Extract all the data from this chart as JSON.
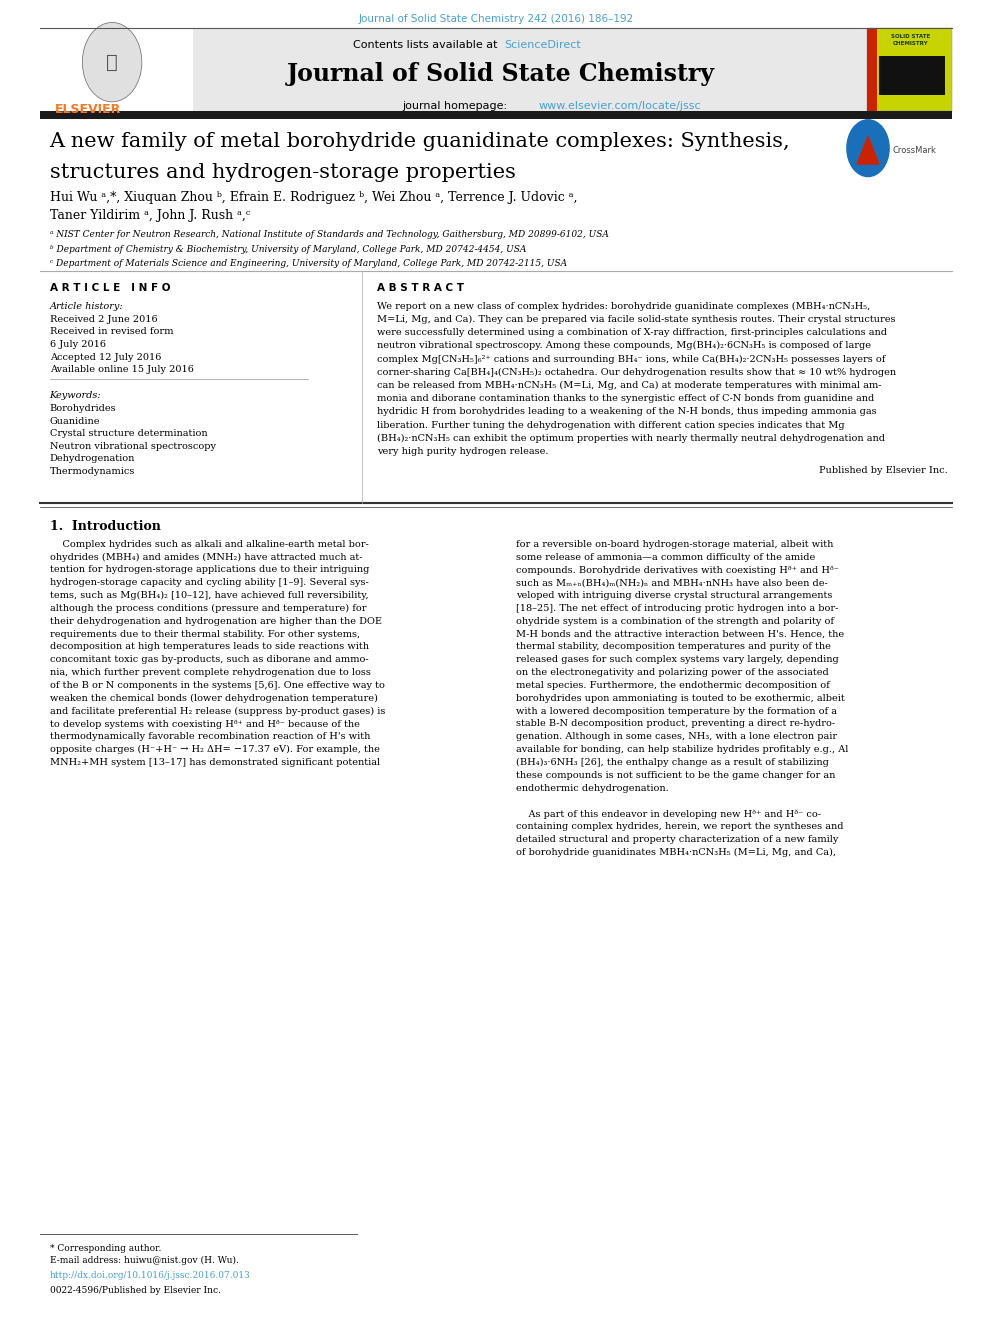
{
  "page_width": 9.92,
  "page_height": 13.23,
  "background": "#ffffff",
  "top_journal_ref": "Journal of Solid State Chemistry 242 (2016) 186–192",
  "top_journal_ref_color": "#4a9fd4",
  "header_bg": "#e8e8e8",
  "header_sciencedirect_color": "#4a9fd4",
  "journal_name": "Journal of Solid State Chemistry",
  "journal_homepage_color": "#4a9fd4",
  "thick_bar_color": "#1a1a1a",
  "article_title_line1": "A new family of metal borohydride guanidinate complexes: Synthesis,",
  "article_title_line2": "structures and hydrogen-storage properties",
  "authors_line1": "Hui Wu ᵃ,*, Xiuquan Zhou ᵇ, Efrain E. Rodriguez ᵇ, Wei Zhou ᵃ, Terrence J. Udovic ᵃ,",
  "authors_line2": "Taner Yildirim ᵃ, John J. Rush ᵃ,ᶜ",
  "affil_a": "ᵃ NIST Center for Neutron Research, National Institute of Standards and Technology, Gaithersburg, MD 20899-6102, USA",
  "affil_b": "ᵇ Department of Chemistry & Biochemistry, University of Maryland, College Park, MD 20742-4454, USA",
  "affil_c": "ᶜ Department of Materials Science and Engineering, University of Maryland, College Park, MD 20742-2115, USA",
  "thin_rule_color": "#aaaaaa",
  "article_info_header": "A R T I C L E   I N F O",
  "abstract_header": "A B S T R A C T",
  "article_history_label": "Article history:",
  "received_1": "Received 2 June 2016",
  "received_revised": "Received in revised form",
  "revised_date": "6 July 2016",
  "accepted": "Accepted 12 July 2016",
  "available": "Available online 15 July 2016",
  "keywords_label": "Keywords:",
  "keywords": [
    "Borohydrides",
    "Guanidine",
    "Crystal structure determination",
    "Neutron vibrational spectroscopy",
    "Dehydrogenation",
    "Thermodynamics"
  ],
  "published_by": "Published by Elsevier Inc.",
  "intro_header": "1.  Introduction",
  "footnote_star": "* Corresponding author.",
  "footnote_email": "E-mail address: huiwu@nist.gov (H. Wu).",
  "footnote_doi": "http://dx.doi.org/10.1016/j.jssc.2016.07.013",
  "footnote_issn": "0022-4596/Published by Elsevier Inc.",
  "abstract_lines": [
    "We report on a new class of complex hydrides: borohydride guanidinate complexes (MBH₄·nCN₃H₅,",
    "M=Li, Mg, and Ca). They can be prepared via facile solid-state synthesis routes. Their crystal structures",
    "were successfully determined using a combination of X-ray diffraction, first-principles calculations and",
    "neutron vibrational spectroscopy. Among these compounds, Mg(BH₄)₂·6CN₃H₅ is composed of large",
    "complex Mg[CN₃H₅]₆²⁺ cations and surrounding BH₄⁻ ions, while Ca(BH₄)₂·2CN₃H₅ possesses layers of",
    "corner-sharing Ca[BH₄]₄(CN₃H₅)₂ octahedra. Our dehydrogenation results show that ≈ 10 wt% hydrogen",
    "can be released from MBH₄·nCN₃H₅ (M=Li, Mg, and Ca) at moderate temperatures with minimal am-",
    "monia and diborane contamination thanks to the synergistic effect of C-N bonds from guanidine and",
    "hydridic H from borohydrides leading to a weakening of the N-H bonds, thus impeding ammonia gas",
    "liberation. Further tuning the dehydrogenation with different cation species indicates that Mg",
    "(BH₄)₂·nCN₃H₅ can exhibit the optimum properties with nearly thermally neutral dehydrogenation and",
    "very high purity hydrogen release."
  ],
  "intro_col1_lines": [
    "    Complex hydrides such as alkali and alkaline-earth metal bor-",
    "ohydrides (MBH₄) and amides (MNH₂) have attracted much at-",
    "tention for hydrogen-storage applications due to their intriguing",
    "hydrogen-storage capacity and cycling ability [1–9]. Several sys-",
    "tems, such as Mg(BH₄)₂ [10–12], have achieved full reversibility,",
    "although the process conditions (pressure and temperature) for",
    "their dehydrogenation and hydrogenation are higher than the DOE",
    "requirements due to their thermal stability. For other systems,",
    "decomposition at high temperatures leads to side reactions with",
    "concomitant toxic gas by-products, such as diborane and ammo-",
    "nia, which further prevent complete rehydrogenation due to loss",
    "of the B or N components in the systems [5,6]. One effective way to",
    "weaken the chemical bonds (lower dehydrogenation temperature)",
    "and facilitate preferential H₂ release (suppress by-product gases) is",
    "to develop systems with coexisting Hᶞ⁺ and Hᶞ⁻ because of the",
    "thermodynamically favorable recombination reaction of H's with",
    "opposite charges (H⁻+H⁻ → H₂ ΔH= −17.37 eV). For example, the",
    "MNH₂+MH system [13–17] has demonstrated significant potential"
  ],
  "intro_col2_lines": [
    "for a reversible on-board hydrogen-storage material, albeit with",
    "some release of ammonia—a common difficulty of the amide",
    "compounds. Borohydride derivatives with coexisting Hᶞ⁺ and Hᶞ⁻",
    "such as Mₘ₊ₙ(BH₄)ₘ(NH₂)ₙ and MBH₄·nNH₃ have also been de-",
    "veloped with intriguing diverse crystal structural arrangements",
    "[18–25]. The net effect of introducing protic hydrogen into a bor-",
    "ohydride system is a combination of the strength and polarity of",
    "M-H bonds and the attractive interaction between H's. Hence, the",
    "thermal stability, decomposition temperatures and purity of the",
    "released gases for such complex systems vary largely, depending",
    "on the electronegativity and polarizing power of the associated",
    "metal species. Furthermore, the endothermic decomposition of",
    "borohydrides upon ammoniating is touted to be exothermic, albeit",
    "with a lowered decomposition temperature by the formation of a",
    "stable B-N decomposition product, preventing a direct re-hydro-",
    "genation. Although in some cases, NH₃, with a lone electron pair",
    "available for bonding, can help stabilize hydrides profitably e.g., Al",
    "(BH₄)₃·6NH₃ [26], the enthalpy change as a result of stabilizing",
    "these compounds is not sufficient to be the game changer for an",
    "endothermic dehydrogenation.",
    "",
    "    As part of this endeavor in developing new Hᶞ⁺ and Hᶞ⁻ co-",
    "containing complex hydrides, herein, we report the syntheses and",
    "detailed structural and property characterization of a new family",
    "of borohydride guanidinates MBH₄·nCN₃H₅ (M=Li, Mg, and Ca),"
  ]
}
